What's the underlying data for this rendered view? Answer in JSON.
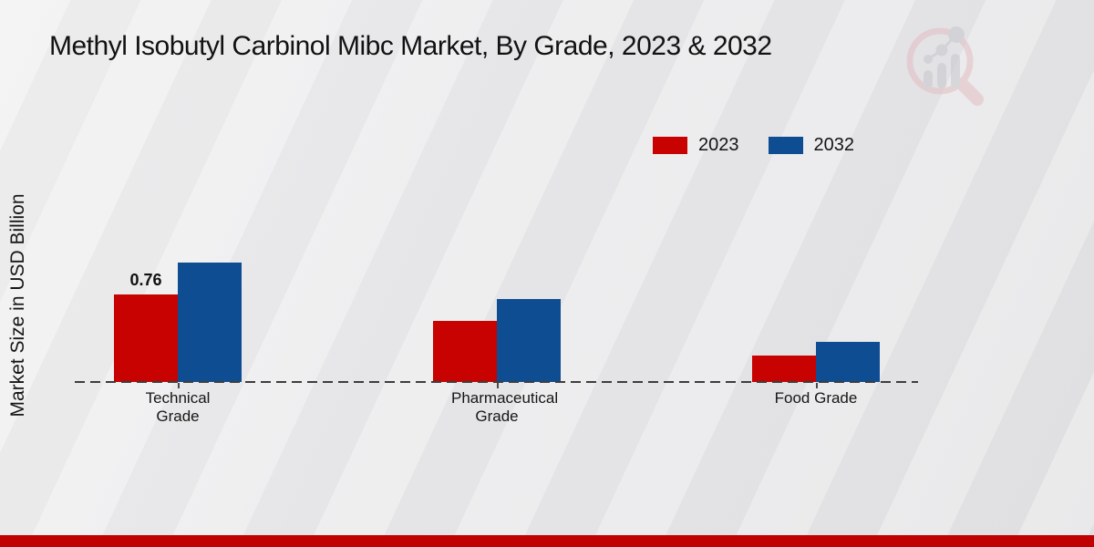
{
  "chart_data": {
    "type": "bar",
    "title": "Methyl Isobutyl Carbinol Mibc Market, By Grade, 2023 & 2032",
    "ylabel": "Market Size in USD Billion",
    "xlabel": "",
    "categories": [
      "Technical Grade",
      "Pharmaceutical Grade",
      "Food Grade"
    ],
    "series": [
      {
        "name": "2023",
        "color": "#c80101",
        "values": [
          0.76,
          0.53,
          0.23
        ],
        "shown_labels": [
          "0.76",
          "",
          ""
        ]
      },
      {
        "name": "2032",
        "color": "#0f4d92",
        "values": [
          1.04,
          0.72,
          0.35
        ],
        "shown_labels": [
          "",
          "",
          ""
        ]
      }
    ],
    "ylim": [
      0,
      1.1
    ],
    "grid": false,
    "y_axis_ticks_visible": false,
    "baseline_style": "dashed",
    "legend_position": "top-right"
  },
  "branding": {
    "logo_icon": "magnifier-bar-chart-logo",
    "footer_band_color": "#c10101"
  },
  "colors": {
    "background": "#e9e9eb",
    "text": "#141414",
    "baseline": "#3d3d3d"
  }
}
